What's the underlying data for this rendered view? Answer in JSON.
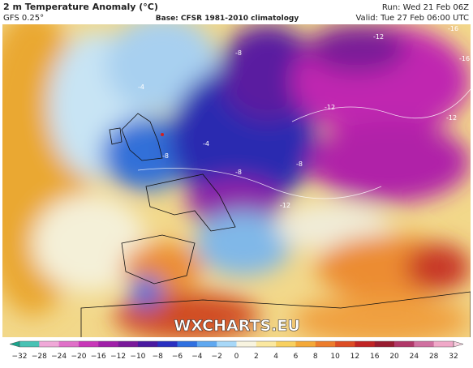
{
  "header": {
    "title": "2 m Temperature Anomaly (°C)",
    "model": "GFS 0.25°",
    "base": "Base: CFSR 1981-2010 climatology",
    "run": "Run: Wed 21 Feb 06Z",
    "valid": "Valid: Tue 27 Feb 06:00 UTC"
  },
  "watermark": "WXCHARTS.EU",
  "map_labels": [
    "-8",
    "-8",
    "-12",
    "-12",
    "-16",
    "-16",
    "-12",
    "-8",
    "-8",
    "-12",
    "-4",
    "-4"
  ],
  "colorbar": {
    "ticks": [
      "−32",
      "−28",
      "−24",
      "−20",
      "−16",
      "−12",
      "−10",
      "−8",
      "−6",
      "−4",
      "−2",
      "0",
      "2",
      "4",
      "6",
      "8",
      "10",
      "12",
      "16",
      "20",
      "24",
      "28",
      "32"
    ],
    "colors": [
      "#1aa58c",
      "#48c2b4",
      "#f0a8d8",
      "#e070c8",
      "#c838b8",
      "#a020a8",
      "#7a1a9a",
      "#4a1aa0",
      "#2a30c0",
      "#3070e0",
      "#60a8f0",
      "#a8d8f8",
      "#f8f4e0",
      "#fbe8a0",
      "#f8d060",
      "#f4a838",
      "#ec7c2c",
      "#dc4c24",
      "#c02424",
      "#981c30",
      "#b03868",
      "#d070a0",
      "#f0a8c8",
      "#f8d0e0"
    ]
  }
}
